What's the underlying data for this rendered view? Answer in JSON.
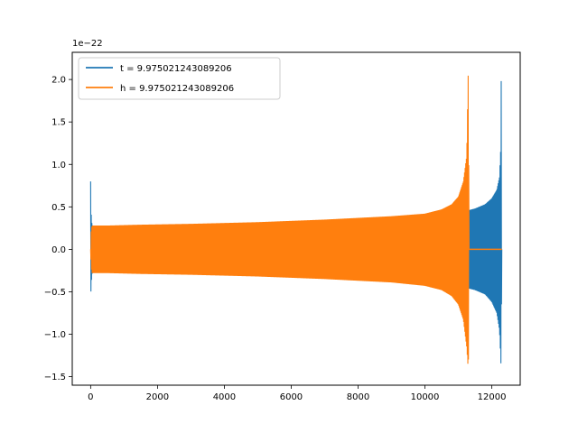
{
  "chart_data": {
    "type": "line",
    "title": "",
    "xlabel": "",
    "ylabel": "",
    "y_offset_label": "1e−22",
    "xlim": [
      -550,
      12850
    ],
    "ylim": [
      -1.6,
      2.32
    ],
    "x_ticks": [
      0,
      2000,
      4000,
      6000,
      8000,
      10000,
      12000
    ],
    "x_tick_labels": [
      "0",
      "2000",
      "4000",
      "6000",
      "8000",
      "10000",
      "12000"
    ],
    "y_ticks": [
      -1.5,
      -1.0,
      -0.5,
      0.0,
      0.5,
      1.0,
      1.5,
      2.0
    ],
    "y_tick_labels": [
      "−1.5",
      "−1.0",
      "−0.5",
      "0.0",
      "0.5",
      "1.0",
      "1.5",
      "2.0"
    ],
    "grid": false,
    "legend_position": "top-left",
    "series": [
      {
        "name": "t = 9.975021243089206",
        "color": "#1f77b4",
        "style": "dense-oscillation-envelope",
        "x": [
          0,
          10,
          40,
          80,
          150,
          500,
          1500,
          3000,
          5000,
          7000,
          9000,
          10000,
          10500,
          11000,
          11300,
          11500,
          11800,
          12000,
          12150,
          12230,
          12270,
          12280,
          12300
        ],
        "upper": [
          0.8,
          0.45,
          0.29,
          0.27,
          0.27,
          0.27,
          0.28,
          0.29,
          0.31,
          0.33,
          0.36,
          0.38,
          0.4,
          0.43,
          0.46,
          0.48,
          0.53,
          0.6,
          0.7,
          0.85,
          1.2,
          2.2,
          0.0
        ],
        "lower": [
          -0.92,
          -0.45,
          -0.29,
          -0.27,
          -0.27,
          -0.27,
          -0.28,
          -0.29,
          -0.31,
          -0.33,
          -0.36,
          -0.38,
          -0.4,
          -0.43,
          -0.46,
          -0.48,
          -0.53,
          -0.62,
          -0.75,
          -0.95,
          -1.3,
          -1.44,
          0.0
        ]
      },
      {
        "name": "h = 9.975021243089206",
        "color": "#ff7f0e",
        "style": "dense-oscillation-envelope",
        "x": [
          0,
          15,
          40,
          100,
          500,
          1500,
          3000,
          5000,
          7000,
          9000,
          10000,
          10500,
          10800,
          11000,
          11150,
          11250,
          11300,
          11320
        ],
        "upper": [
          0.0,
          0.2,
          0.28,
          0.28,
          0.28,
          0.29,
          0.3,
          0.32,
          0.35,
          0.39,
          0.42,
          0.47,
          0.53,
          0.62,
          0.8,
          1.1,
          2.2,
          0.0
        ],
        "lower": [
          0.0,
          -0.2,
          -0.28,
          -0.28,
          -0.28,
          -0.29,
          -0.3,
          -0.32,
          -0.35,
          -0.39,
          -0.43,
          -0.48,
          -0.55,
          -0.65,
          -0.83,
          -1.15,
          -1.44,
          0.0
        ],
        "flat_after": {
          "x_start": 11320,
          "x_end": 12300,
          "y": 0.0
        }
      }
    ]
  }
}
